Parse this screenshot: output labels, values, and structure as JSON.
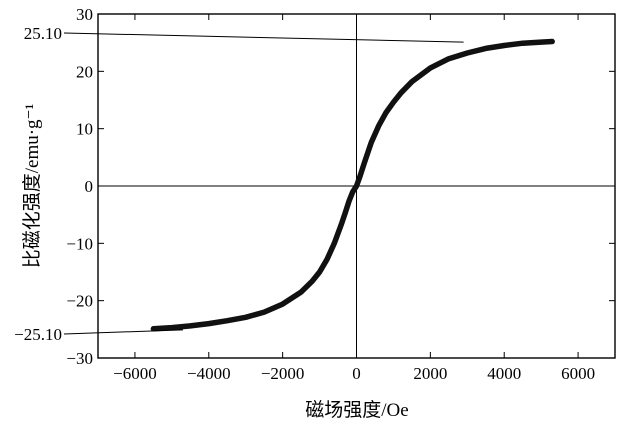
{
  "chart_data": {
    "type": "line",
    "title": "",
    "xlabel": "磁场强度/Oe",
    "ylabel": "比磁化强度/emu·g⁻¹",
    "xlim": [
      -7000,
      7000
    ],
    "ylim": [
      -30,
      30
    ],
    "x_ticks": [
      -6000,
      -4000,
      -2000,
      0,
      2000,
      4000,
      6000
    ],
    "y_ticks": [
      -30,
      -20,
      -10,
      0,
      10,
      20,
      30
    ],
    "x_tick_labels": [
      "−6000",
      "−4000",
      "−2000",
      "0",
      "2000",
      "4000",
      "6000"
    ],
    "y_tick_labels": [
      "−30",
      "−20",
      "−10",
      "0",
      "10",
      "20",
      "30"
    ],
    "grid": false,
    "zero_lines": true,
    "series": [
      {
        "x": [
          -5500,
          -5000,
          -4500,
          -4000,
          -3500,
          -3000,
          -2500,
          -2000,
          -1500,
          -1200,
          -1000,
          -800,
          -600,
          -400,
          -300,
          -200,
          -100,
          0,
          100,
          200,
          300,
          400,
          600,
          800,
          1000,
          1200,
          1500,
          2000,
          2500,
          3000,
          3500,
          4000,
          4500,
          5000,
          5300
        ],
        "y": [
          -24.9,
          -24.7,
          -24.4,
          -24.0,
          -23.5,
          -22.9,
          -22.0,
          -20.6,
          -18.5,
          -16.6,
          -15.0,
          -12.8,
          -10.0,
          -6.5,
          -4.6,
          -2.6,
          -1.0,
          0.0,
          1.8,
          3.8,
          5.7,
          7.6,
          10.5,
          12.8,
          14.6,
          16.2,
          18.2,
          20.6,
          22.2,
          23.2,
          24.0,
          24.5,
          24.9,
          25.1,
          25.2
        ]
      }
    ],
    "annotations": [
      {
        "label": "25.10",
        "value": 25.1,
        "x": 2900
      },
      {
        "label": "−25.10",
        "value": -25.1,
        "x": -4700
      }
    ]
  }
}
